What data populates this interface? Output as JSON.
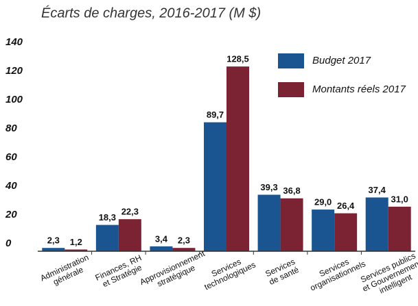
{
  "chart_data": {
    "type": "bar",
    "title": "Écarts de charges, 2016-2017 (M $)",
    "categories": [
      "Administration\ngénérale",
      "Finances, RH\net Stratégie",
      "Approvisionnement\nstratégique",
      "Services\ntechnologiques",
      "Services\nde santé",
      "Services\norganisationnels",
      "Services publics\net Gouvernement\nintelligent"
    ],
    "series": [
      {
        "name": "Budget 2017",
        "color": "#1a5591",
        "values": [
          2.3,
          18.3,
          3.4,
          89.7,
          39.3,
          29.0,
          37.4
        ],
        "value_labels": [
          "2,3",
          "18,3",
          "3,4",
          "89,7",
          "39,3",
          "29,0",
          "37,4"
        ]
      },
      {
        "name": "Montants réels 2017",
        "color": "#7b2233",
        "values": [
          1.2,
          22.3,
          2.3,
          128.5,
          36.8,
          26.4,
          31.0
        ],
        "value_labels": [
          "1,2",
          "22,3",
          "2,3",
          "128,5",
          "36,8",
          "26,4",
          "31,0"
        ]
      }
    ],
    "ylim": [
      0,
      140
    ],
    "yticks": [
      0,
      20,
      40,
      60,
      80,
      100,
      120,
      140
    ],
    "grid": false,
    "legend": "top-right"
  }
}
